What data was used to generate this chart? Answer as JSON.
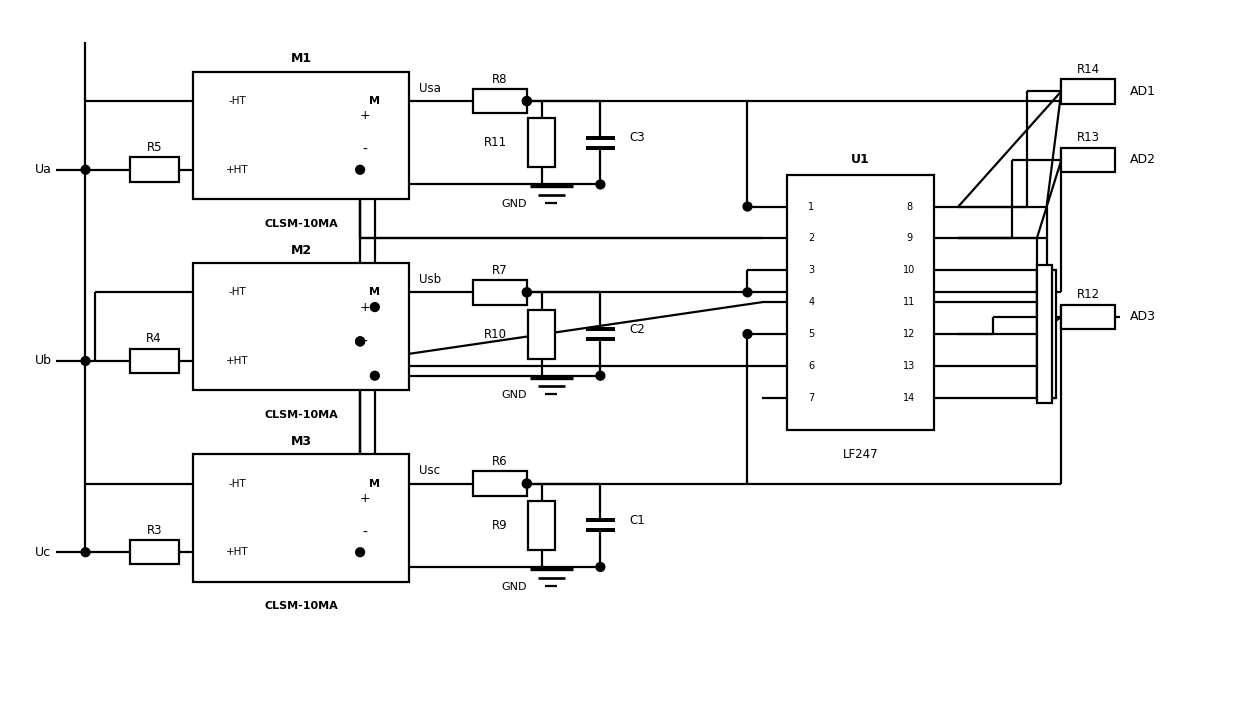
{
  "bg": "#ffffff",
  "lc": "#000000",
  "lw": 1.6,
  "figsize": [
    12.4,
    7.21
  ],
  "dpi": 100,
  "xlim": [
    0,
    124
  ],
  "ylim": [
    0,
    72.1
  ]
}
